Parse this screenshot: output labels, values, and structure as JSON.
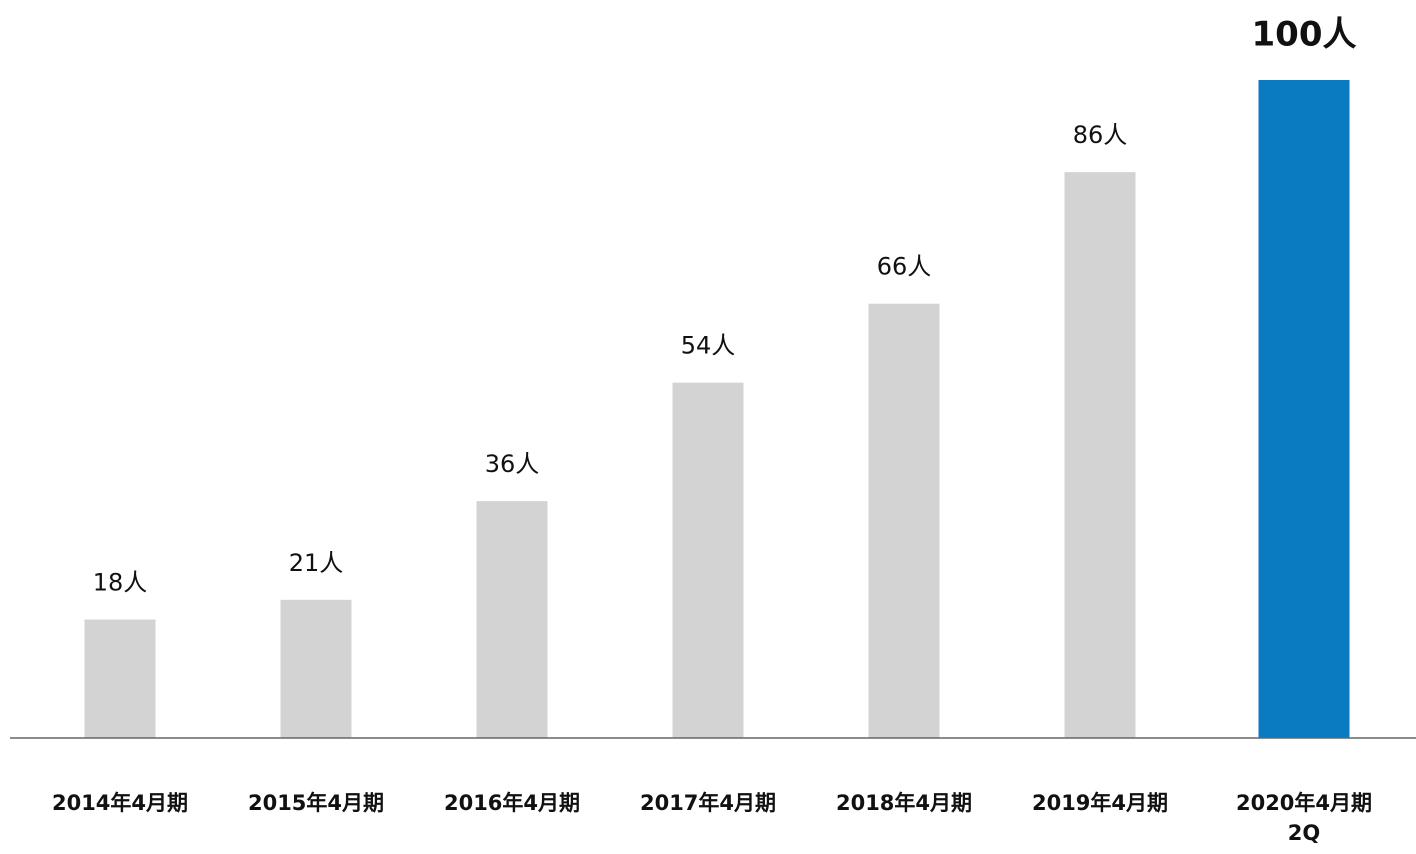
{
  "chart_data": {
    "type": "bar",
    "categories": [
      "2014年4月期",
      "2015年4月期",
      "2016年4月期",
      "2017年4月期",
      "2018年4月期",
      "2019年4月期",
      "2020年4月期\n2Q"
    ],
    "values": [
      18,
      21,
      36,
      54,
      66,
      86,
      100
    ],
    "value_labels": [
      "18人",
      "21人",
      "36人",
      "54人",
      "66人",
      "86人",
      "100人"
    ],
    "colors": [
      "#d3d3d3",
      "#d3d3d3",
      "#d3d3d3",
      "#d3d3d3",
      "#d3d3d3",
      "#d3d3d3",
      "#0b7bc1"
    ]
  }
}
